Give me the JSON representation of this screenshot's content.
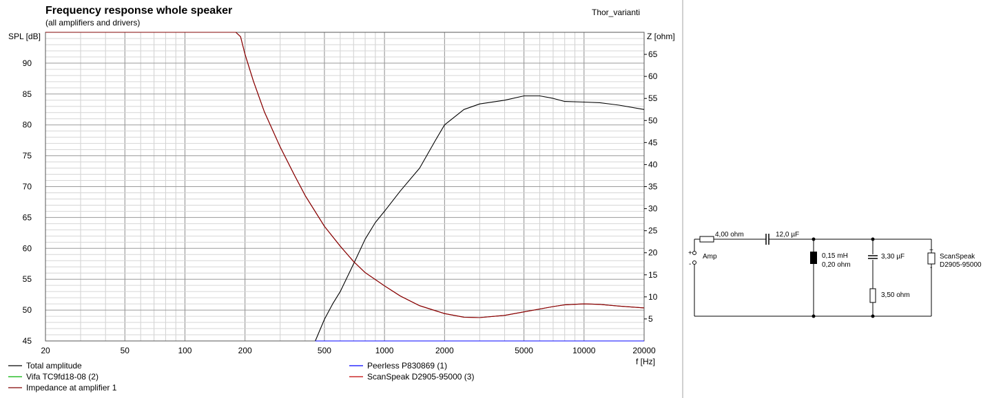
{
  "chart_data": {
    "type": "line",
    "title": "Frequency response whole speaker",
    "subtitle": "(all amplifiers and drivers)",
    "top_right_label": "Thor_varianti",
    "xlabel": "f [Hz]",
    "ylabel_left": "SPL [dB]",
    "ylabel_right": "Z [ohm]",
    "x_scale": "log",
    "xlim": [
      20,
      20000
    ],
    "ylim_left": [
      45,
      95
    ],
    "ylim_right": [
      0,
      70
    ],
    "x_ticks": [
      20,
      50,
      100,
      200,
      500,
      1000,
      2000,
      5000,
      10000,
      20000
    ],
    "x_tick_labels": [
      "20",
      "50",
      "100",
      "200",
      "500",
      "1000",
      "2000",
      "5000",
      "10000",
      "20000"
    ],
    "y_left_ticks": [
      45,
      50,
      55,
      60,
      65,
      70,
      75,
      80,
      85,
      90
    ],
    "y_right_ticks": [
      5,
      10,
      15,
      20,
      25,
      30,
      35,
      40,
      45,
      50,
      55,
      60,
      65
    ],
    "grid": true,
    "legend": [
      {
        "name": "Total amplitude",
        "color": "#000000"
      },
      {
        "name": "Peerless P830869 (1)",
        "color": "#0000ff"
      },
      {
        "name": "Vifa TC9fd18-08 (2)",
        "color": "#00b000"
      },
      {
        "name": "ScanSpeak D2905-95000 (3)",
        "color": "#c00000"
      },
      {
        "name": "Impedance at amplifier 1",
        "color": "#800000"
      }
    ],
    "series": [
      {
        "name": "Total amplitude",
        "axis": "left",
        "color": "#000000",
        "x": [
          450,
          500,
          550,
          600,
          700,
          800,
          900,
          1000,
          1200,
          1500,
          1800,
          2000,
          2500,
          3000,
          4000,
          5000,
          6000,
          7000,
          8000,
          10000,
          12000,
          15000,
          20000
        ],
        "y": [
          45,
          48.5,
          51,
          53,
          57.5,
          61.5,
          64.2,
          66,
          69.3,
          73,
          77.5,
          80,
          82.5,
          83.4,
          84,
          84.7,
          84.7,
          84.3,
          83.8,
          83.7,
          83.6,
          83.2,
          82.5
        ]
      },
      {
        "name": "Peerless P830869 (1)",
        "axis": "left",
        "color": "#0000ff",
        "x": [
          450,
          20000
        ],
        "y": [
          45,
          45
        ]
      },
      {
        "name": "ScanSpeak D2905-95000 (3)",
        "axis": "right",
        "color": "#c00000",
        "x": [
          20,
          180,
          190,
          200,
          220,
          250,
          300,
          350,
          400,
          500,
          600,
          700,
          800,
          1000,
          1200,
          1500,
          2000,
          2500,
          3000,
          4000,
          5000,
          7000,
          8000,
          10000,
          12000,
          15000,
          20000
        ],
        "y": [
          70,
          70,
          69,
          65,
          59,
          52,
          44,
          38,
          33,
          26,
          21.5,
          18,
          15.5,
          12.5,
          10.2,
          8,
          6.2,
          5.4,
          5.3,
          5.8,
          6.6,
          7.8,
          8.2,
          8.4,
          8.3,
          7.9,
          7.5
        ]
      },
      {
        "name": "Impedance at amplifier 1",
        "axis": "right",
        "color": "#800000",
        "x": [
          20,
          180,
          190,
          200,
          220,
          250,
          300,
          350,
          400,
          500,
          600,
          700,
          800,
          1000,
          1200,
          1500,
          2000,
          2500,
          3000,
          4000,
          5000,
          7000,
          8000,
          10000,
          12000,
          15000,
          20000
        ],
        "y": [
          70,
          70,
          69,
          65,
          59,
          52,
          44,
          38,
          33,
          26,
          21.5,
          18,
          15.5,
          12.5,
          10.2,
          8,
          6.2,
          5.4,
          5.3,
          5.8,
          6.6,
          7.8,
          8.2,
          8.4,
          8.3,
          7.9,
          7.5
        ]
      }
    ]
  },
  "schematic": {
    "amp_label": "Amp",
    "amp_plus": "+",
    "amp_minus": "-",
    "resistor1": "4,00 ohm",
    "capacitor1": "12,0 µF",
    "inductor_value": "0,15 mH",
    "inductor_resistance": "0,20 ohm",
    "capacitor2": "3,30 µF",
    "resistor2": "3,50 ohm",
    "driver_line1": "ScanSpeak",
    "driver_line2": "D2905-95000",
    "driver_plus": "+",
    "driver_minus": "-"
  }
}
